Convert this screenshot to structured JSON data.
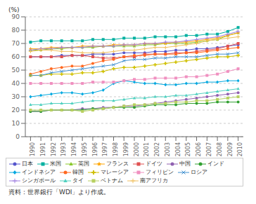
{
  "chart_data": {
    "type": "line",
    "x": [
      1990,
      1991,
      1992,
      1993,
      1994,
      1995,
      1996,
      1997,
      1998,
      1999,
      2000,
      2001,
      2002,
      2003,
      2004,
      2005,
      2006,
      2007,
      2008,
      2009,
      2010
    ],
    "xlim": [
      1989.5,
      2010.5
    ],
    "xticks": [
      1990,
      1991,
      1992,
      1993,
      1994,
      1995,
      1996,
      1997,
      1998,
      1999,
      2000,
      2001,
      2002,
      2003,
      2004,
      2005,
      2006,
      2007,
      2008,
      2009,
      2010
    ],
    "ylim": [
      0,
      90
    ],
    "yticks": [
      0,
      10,
      20,
      30,
      40,
      50,
      60,
      70,
      80,
      90
    ],
    "y_label": "(%)",
    "annotations": [
      "資料：世界銀行「WDI」より作成。"
    ],
    "grid": true,
    "legend": "bottom",
    "series": [
      {
        "name": "日本",
        "color": "#5555cc",
        "marker": "circle",
        "values": [
          60,
          60,
          60,
          61,
          61,
          61,
          62,
          62,
          62,
          63,
          63,
          63,
          64,
          64,
          65,
          65,
          66,
          66,
          67,
          68,
          69
        ]
      },
      {
        "name": "米国",
        "color": "#00b0a0",
        "marker": "square",
        "values": [
          71,
          72,
          72,
          72,
          72,
          72,
          73,
          73,
          73,
          74,
          74,
          74,
          75,
          75,
          75,
          76,
          76,
          77,
          77,
          79,
          82
        ]
      },
      {
        "name": "英国",
        "color": "#88c828",
        "marker": "triangle",
        "values": [
          65,
          65,
          66,
          66,
          67,
          67,
          67,
          68,
          68,
          68,
          68,
          69,
          69,
          70,
          70,
          70,
          71,
          72,
          73,
          76,
          78
        ]
      },
      {
        "name": "フランス",
        "color": "#ffa500",
        "marker": "star",
        "values": [
          66,
          66,
          67,
          67,
          67,
          68,
          68,
          68,
          69,
          69,
          69,
          70,
          70,
          70,
          71,
          71,
          72,
          73,
          74,
          76,
          78
        ]
      },
      {
        "name": "ドイツ",
        "color": "#e05050",
        "marker": "square",
        "values": [
          60,
          60,
          60,
          60,
          61,
          61,
          60,
          59,
          59,
          60,
          60,
          62,
          62,
          62,
          63,
          63,
          64,
          65,
          66,
          68,
          70
        ]
      },
      {
        "name": "中国",
        "color": "#9060b0",
        "marker": "circle",
        "values": [
          19,
          19,
          20,
          20,
          20,
          21,
          21,
          22,
          22,
          23,
          23,
          24,
          25,
          26,
          27,
          28,
          29,
          30,
          31,
          32,
          33
        ]
      },
      {
        "name": "インド",
        "color": "#30a030",
        "marker": "circle",
        "values": [
          19,
          19,
          20,
          20,
          20,
          20,
          21,
          21,
          22,
          22,
          22,
          23,
          24,
          24,
          24,
          25,
          25,
          25,
          26,
          26,
          26
        ]
      },
      {
        "name": "インドネシア",
        "color": "#00a8e0",
        "marker": "diamond",
        "values": [
          30,
          31,
          32,
          33,
          33,
          32,
          33,
          35,
          40,
          42,
          41,
          40,
          40,
          39,
          39,
          40,
          40,
          41,
          41,
          42,
          42
        ]
      },
      {
        "name": "韓国",
        "color": "#ff6820",
        "marker": "circle",
        "values": [
          47,
          49,
          51,
          52,
          53,
          53,
          55,
          57,
          58,
          60,
          61,
          61,
          62,
          62,
          62,
          63,
          63,
          64,
          65,
          66,
          67
        ]
      },
      {
        "name": "マレーシア",
        "color": "#d0c000",
        "marker": "plus_filled",
        "values": [
          46,
          46,
          47,
          47,
          47,
          48,
          48,
          49,
          51,
          52,
          52,
          53,
          54,
          55,
          56,
          57,
          58,
          59,
          60,
          60,
          61
        ]
      },
      {
        "name": "フィリピン",
        "color": "#f090c0",
        "marker": "square",
        "values": [
          40,
          40,
          40,
          40,
          40,
          40,
          41,
          41,
          41,
          42,
          43,
          43,
          44,
          44,
          44,
          45,
          45,
          46,
          47,
          49,
          51
        ]
      },
      {
        "name": "ロシア",
        "color": "#4090d0",
        "marker": "x",
        "values": [
          46,
          46,
          48,
          49,
          50,
          51,
          52,
          53,
          54,
          57,
          58,
          58,
          59,
          59,
          60,
          60,
          60,
          61,
          62,
          62,
          63
        ]
      },
      {
        "name": "シンガポール",
        "color": "#a080e0",
        "marker": "plus",
        "values": [
          65,
          66,
          66,
          67,
          67,
          67,
          68,
          68,
          68,
          69,
          69,
          70,
          70,
          71,
          71,
          72,
          73,
          74,
          75,
          77,
          79
        ]
      },
      {
        "name": "タイ",
        "color": "#50d0c0",
        "marker": "triangle",
        "values": [
          24,
          24,
          25,
          25,
          25,
          26,
          27,
          27,
          27,
          28,
          29,
          29,
          30,
          30,
          31,
          31,
          32,
          33,
          34,
          35,
          36
        ]
      },
      {
        "name": "ベトナム",
        "color": "#b8d060",
        "marker": "square",
        "values": [
          20,
          20,
          20,
          20,
          20,
          19,
          20,
          21,
          22,
          23,
          24,
          24,
          25,
          25,
          26,
          26,
          27,
          27,
          28,
          29,
          30
        ]
      },
      {
        "name": "南アフリカ",
        "color": "#f0c060",
        "marker": "plus",
        "values": [
          64,
          65,
          65,
          64,
          64,
          63,
          63,
          63,
          64,
          65,
          65,
          66,
          67,
          67,
          68,
          69,
          70,
          72,
          73,
          74,
          75
        ]
      }
    ]
  }
}
